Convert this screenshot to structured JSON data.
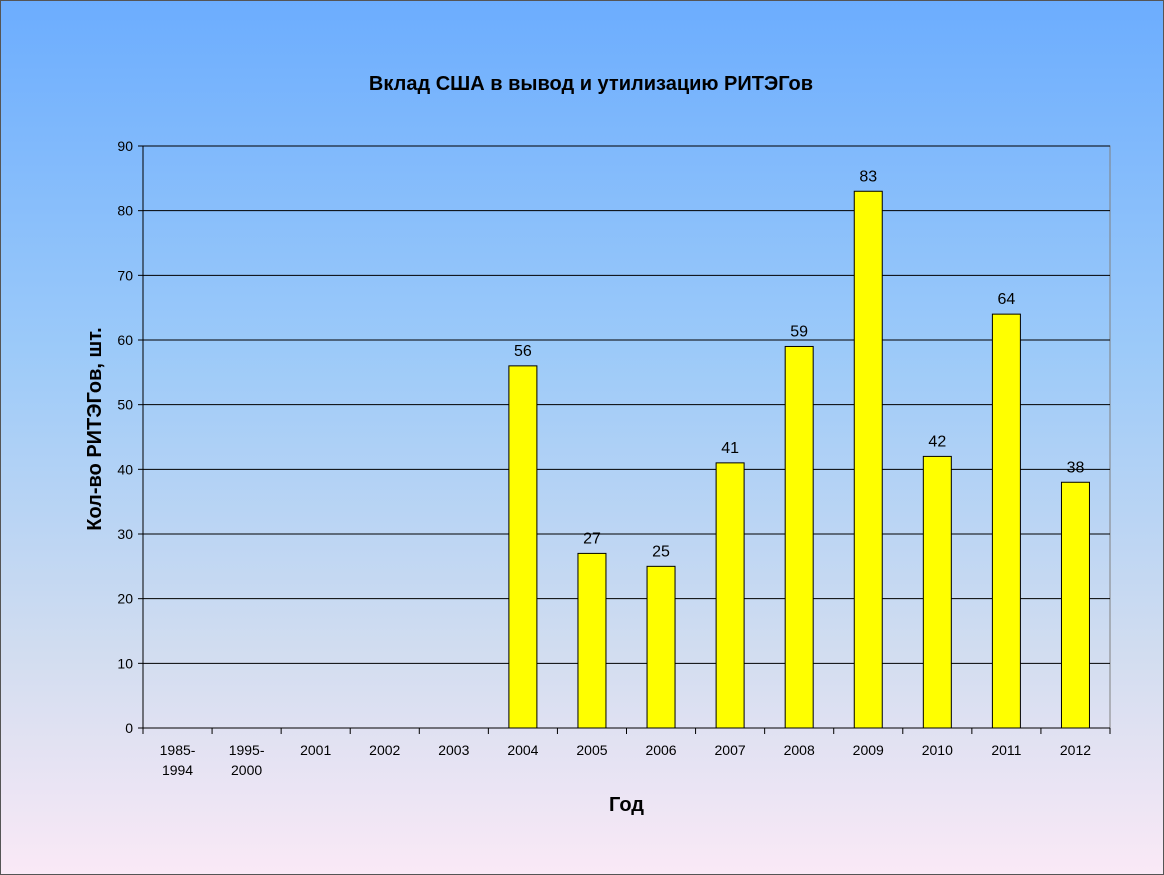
{
  "chart_data": {
    "type": "bar",
    "title": "Вклад США в вывод и утилизацию РИТЭГов",
    "xlabel": "Год",
    "ylabel": "Кол-во РИТЭГов, шт.",
    "categories": [
      "1985-1994",
      "1995-2000",
      "2001",
      "2002",
      "2003",
      "2004",
      "2005",
      "2006",
      "2007",
      "2008",
      "2009",
      "2010",
      "2011",
      "2012"
    ],
    "values": [
      0,
      0,
      0,
      0,
      0,
      56,
      27,
      25,
      41,
      59,
      83,
      42,
      64,
      38
    ],
    "data_labels": [
      null,
      null,
      null,
      null,
      null,
      "56",
      "27",
      "25",
      "41",
      "59",
      "83",
      "42",
      "64",
      "38"
    ],
    "ylim": [
      0,
      90
    ],
    "yticks": [
      0,
      10,
      20,
      30,
      40,
      50,
      60,
      70,
      80,
      90
    ],
    "grid": true,
    "bar_color": "#ffff00",
    "bar_outline_color": "#000000"
  }
}
